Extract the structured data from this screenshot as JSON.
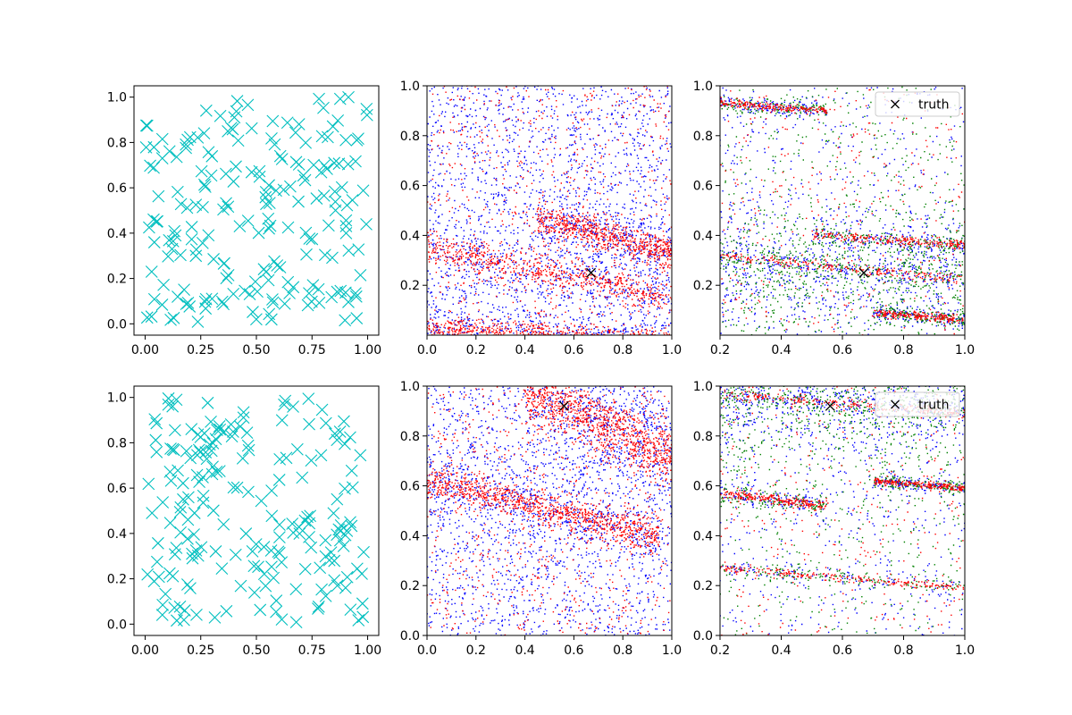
{
  "colors": {
    "cyan": "#00bfbf",
    "red": "#ff0000",
    "blue": "#0000ff",
    "green": "#008000",
    "black": "#000000"
  },
  "chart_data": [
    {
      "id": "r0c0",
      "type": "scatter",
      "marker": "x-large",
      "xlim": [
        -0.05,
        1.05
      ],
      "ylim": [
        -0.05,
        1.05
      ],
      "xticks": [
        0.0,
        0.25,
        0.5,
        0.75,
        1.0
      ],
      "xtick_labels": [
        "0.00",
        "0.25",
        "0.50",
        "0.75",
        "1.00"
      ],
      "yticks": [
        0.0,
        0.2,
        0.4,
        0.6,
        0.8,
        1.0
      ],
      "ytick_labels": [
        "0.0",
        "0.2",
        "0.4",
        "0.6",
        "0.8",
        "1.0"
      ],
      "points": {
        "count": 200,
        "distribution": "uniform",
        "color": "#00bfbf"
      }
    },
    {
      "id": "r0c1",
      "type": "scatter",
      "marker": "dot",
      "xlim": [
        0,
        1
      ],
      "ylim": [
        0,
        1
      ],
      "xticks": [
        0.0,
        0.2,
        0.4,
        0.6,
        0.8,
        1.0
      ],
      "xtick_labels": [
        "0.0",
        "0.2",
        "0.4",
        "0.6",
        "0.8",
        "1.0"
      ],
      "yticks": [
        0.2,
        0.4,
        0.6,
        0.8,
        1.0
      ],
      "ytick_labels": [
        "0.2",
        "0.4",
        "0.6",
        "0.8",
        "1.0"
      ],
      "series": [
        {
          "color": "#0000ff",
          "approx_count": 2600
        },
        {
          "color": "#ff0000",
          "approx_count": 2600
        }
      ],
      "bands": [
        {
          "x": [
            0.0,
            1.0
          ],
          "y": [
            0.35,
            0.15
          ],
          "spread": 0.03
        },
        {
          "x": [
            0.45,
            1.0
          ],
          "y": [
            0.47,
            0.33
          ],
          "spread": 0.03
        },
        {
          "x": [
            0.0,
            1.0
          ],
          "y": [
            0.03,
            -0.02
          ],
          "spread": 0.02
        }
      ],
      "truth": {
        "x": 0.67,
        "y": 0.25
      }
    },
    {
      "id": "r0c2",
      "type": "scatter",
      "marker": "dot",
      "xlim": [
        0.2,
        1.0
      ],
      "ylim": [
        0,
        1
      ],
      "xticks": [
        0.2,
        0.4,
        0.6,
        0.8,
        1.0
      ],
      "xtick_labels": [
        "0.2",
        "0.4",
        "0.6",
        "0.8",
        "1.0"
      ],
      "yticks": [
        0.2,
        0.4,
        0.6,
        0.8,
        1.0
      ],
      "ytick_labels": [
        "0.2",
        "0.4",
        "0.6",
        "0.8",
        "1.0"
      ],
      "series": [
        {
          "color": "#0000ff",
          "approx_count": 1500
        },
        {
          "color": "#008000",
          "approx_count": 1500
        },
        {
          "color": "#ff0000",
          "approx_count": 1200
        }
      ],
      "bands": [
        {
          "x": [
            0.2,
            1.0
          ],
          "y": [
            0.32,
            0.22
          ],
          "spread": 0.01
        },
        {
          "x": [
            0.5,
            1.0
          ],
          "y": [
            0.4,
            0.36
          ],
          "spread": 0.01
        },
        {
          "x": [
            0.2,
            0.55
          ],
          "y": [
            0.93,
            0.9
          ],
          "spread": 0.008
        },
        {
          "x": [
            0.7,
            1.0
          ],
          "y": [
            0.09,
            0.06
          ],
          "spread": 0.008
        }
      ],
      "truth": {
        "x": 0.67,
        "y": 0.25
      },
      "legend": {
        "label": "truth",
        "placement": "upper right"
      }
    },
    {
      "id": "r1c0",
      "type": "scatter",
      "marker": "x-large",
      "xlim": [
        -0.05,
        1.05
      ],
      "ylim": [
        -0.05,
        1.05
      ],
      "xticks": [
        0.0,
        0.25,
        0.5,
        0.75,
        1.0
      ],
      "xtick_labels": [
        "0.00",
        "0.25",
        "0.50",
        "0.75",
        "1.00"
      ],
      "yticks": [
        0.0,
        0.2,
        0.4,
        0.6,
        0.8,
        1.0
      ],
      "ytick_labels": [
        "0.0",
        "0.2",
        "0.4",
        "0.6",
        "0.8",
        "1.0"
      ],
      "points": {
        "count": 200,
        "distribution": "uniform",
        "color": "#00bfbf"
      }
    },
    {
      "id": "r1c1",
      "type": "scatter",
      "marker": "dot",
      "xlim": [
        0,
        1
      ],
      "ylim": [
        0,
        1
      ],
      "xticks": [
        0.0,
        0.2,
        0.4,
        0.6,
        0.8,
        1.0
      ],
      "xtick_labels": [
        "0.0",
        "0.2",
        "0.4",
        "0.6",
        "0.8",
        "1.0"
      ],
      "yticks": [
        0.0,
        0.2,
        0.4,
        0.6,
        0.8,
        1.0
      ],
      "ytick_labels": [
        "0.0",
        "0.2",
        "0.4",
        "0.6",
        "0.8",
        "1.0"
      ],
      "series": [
        {
          "color": "#0000ff",
          "approx_count": 2600
        },
        {
          "color": "#ff0000",
          "approx_count": 2600
        }
      ],
      "bands": [
        {
          "x": [
            0.0,
            0.95
          ],
          "y": [
            0.62,
            0.4
          ],
          "spread": 0.035
        },
        {
          "x": [
            0.4,
            1.0
          ],
          "y": [
            0.98,
            0.72
          ],
          "spread": 0.06
        }
      ],
      "truth": {
        "x": 0.56,
        "y": 0.92
      }
    },
    {
      "id": "r1c2",
      "type": "scatter",
      "marker": "dot",
      "xlim": [
        0.2,
        1.0
      ],
      "ylim": [
        0,
        1
      ],
      "xticks": [
        0.2,
        0.4,
        0.6,
        0.8,
        1.0
      ],
      "xtick_labels": [
        "0.2",
        "0.4",
        "0.6",
        "0.8",
        "1.0"
      ],
      "yticks": [
        0.0,
        0.2,
        0.4,
        0.6,
        0.8,
        1.0
      ],
      "ytick_labels": [
        "0.0",
        "0.2",
        "0.4",
        "0.6",
        "0.8",
        "1.0"
      ],
      "series": [
        {
          "color": "#0000ff",
          "approx_count": 1500
        },
        {
          "color": "#008000",
          "approx_count": 1500
        },
        {
          "color": "#ff0000",
          "approx_count": 1200
        }
      ],
      "bands": [
        {
          "x": [
            0.2,
            1.0
          ],
          "y": [
            0.97,
            0.89
          ],
          "spread": 0.01
        },
        {
          "x": [
            0.2,
            0.55
          ],
          "y": [
            0.57,
            0.52
          ],
          "spread": 0.01
        },
        {
          "x": [
            0.7,
            1.0
          ],
          "y": [
            0.62,
            0.59
          ],
          "spread": 0.006
        },
        {
          "x": [
            0.2,
            1.0
          ],
          "y": [
            0.27,
            0.19
          ],
          "spread": 0.008
        }
      ],
      "truth": {
        "x": 0.56,
        "y": 0.92
      },
      "legend": {
        "label": "truth",
        "placement": "upper right"
      }
    }
  ]
}
